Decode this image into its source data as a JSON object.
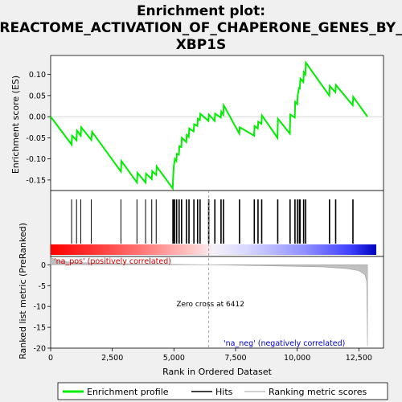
{
  "chart_data": {
    "type": "line",
    "title_lines": [
      "Enrichment plot:",
      "REACTOME_ACTIVATION_OF_CHAPERONE_GENES_BY_",
      "XBP1S"
    ],
    "top": {
      "ylabel": "Enrichment score (ES)",
      "yticks": [
        0.1,
        0.05,
        0.0,
        -0.05,
        -0.1,
        -0.15
      ],
      "ytick_labels": [
        "0.10",
        "0.05",
        "0.00",
        "-0.05",
        "-0.10",
        "-0.15"
      ],
      "ylim": [
        -0.175,
        0.145
      ],
      "es_curve": [
        [
          0,
          0
        ],
        [
          850,
          -0.066
        ],
        [
          870,
          -0.045
        ],
        [
          1050,
          -0.056
        ],
        [
          1070,
          -0.033
        ],
        [
          1220,
          -0.045
        ],
        [
          1240,
          -0.025
        ],
        [
          1650,
          -0.055
        ],
        [
          1680,
          -0.036
        ],
        [
          2850,
          -0.13
        ],
        [
          2870,
          -0.105
        ],
        [
          3500,
          -0.156
        ],
        [
          3520,
          -0.133
        ],
        [
          3850,
          -0.156
        ],
        [
          3870,
          -0.135
        ],
        [
          4100,
          -0.148
        ],
        [
          4120,
          -0.129
        ],
        [
          4280,
          -0.138
        ],
        [
          4300,
          -0.118
        ],
        [
          4950,
          -0.17
        ],
        [
          4965,
          -0.148
        ],
        [
          4980,
          -0.13
        ],
        [
          5000,
          -0.115
        ],
        [
          5040,
          -0.1
        ],
        [
          5100,
          -0.105
        ],
        [
          5120,
          -0.088
        ],
        [
          5200,
          -0.09
        ],
        [
          5220,
          -0.07
        ],
        [
          5300,
          -0.072
        ],
        [
          5320,
          -0.05
        ],
        [
          5500,
          -0.06
        ],
        [
          5520,
          -0.043
        ],
        [
          5600,
          -0.048
        ],
        [
          5620,
          -0.028
        ],
        [
          5800,
          -0.035
        ],
        [
          5820,
          -0.018
        ],
        [
          5950,
          -0.022
        ],
        [
          5970,
          -0.005
        ],
        [
          6050,
          -0.008
        ],
        [
          6070,
          0.007
        ],
        [
          6400,
          -0.01
        ],
        [
          6420,
          0.005
        ],
        [
          6650,
          -0.01
        ],
        [
          6670,
          0.007
        ],
        [
          6900,
          -0.002
        ],
        [
          6920,
          0.012
        ],
        [
          7000,
          0.005
        ],
        [
          7020,
          0.027
        ],
        [
          7650,
          -0.04
        ],
        [
          7670,
          -0.025
        ],
        [
          8250,
          -0.045
        ],
        [
          8270,
          -0.022
        ],
        [
          8400,
          -0.028
        ],
        [
          8420,
          -0.012
        ],
        [
          8550,
          -0.017
        ],
        [
          8570,
          0.003
        ],
        [
          9200,
          -0.05
        ],
        [
          9220,
          -0.005
        ],
        [
          9700,
          -0.04
        ],
        [
          9720,
          0.005
        ],
        [
          9900,
          -0.002
        ],
        [
          9920,
          0.035
        ],
        [
          10000,
          0.03
        ],
        [
          10020,
          0.05
        ],
        [
          10080,
          0.07
        ],
        [
          10100,
          0.065
        ],
        [
          10130,
          0.09
        ],
        [
          10250,
          0.082
        ],
        [
          10270,
          0.105
        ],
        [
          10330,
          0.1
        ],
        [
          10350,
          0.128
        ],
        [
          11300,
          0.05
        ],
        [
          11320,
          0.073
        ],
        [
          11550,
          0.058
        ],
        [
          11570,
          0.075
        ],
        [
          12250,
          0.027
        ],
        [
          12270,
          0.047
        ],
        [
          12850,
          0
        ]
      ]
    },
    "hits": [
      850,
      1050,
      1220,
      1650,
      2850,
      3500,
      3850,
      4100,
      4280,
      4950,
      4965,
      4980,
      5000,
      5040,
      5100,
      5120,
      5200,
      5220,
      5300,
      5320,
      5500,
      5520,
      5600,
      5620,
      5800,
      5820,
      5950,
      5970,
      6050,
      6070,
      6400,
      6420,
      6650,
      6670,
      6900,
      6920,
      7000,
      7020,
      7650,
      7670,
      8250,
      8270,
      8400,
      8420,
      8550,
      8570,
      9200,
      9220,
      9700,
      9720,
      9900,
      9920,
      10000,
      10020,
      10080,
      10100,
      10130,
      10250,
      10270,
      10330,
      10350,
      11300,
      11320,
      11550,
      11570,
      12250,
      12270
    ],
    "bottom": {
      "ylabel": "Ranked list metric (PreRanked)",
      "xlabel": "Rank in Ordered Dataset",
      "yticks": [
        0,
        -5,
        -10,
        -15,
        -20
      ],
      "ytick_labels": [
        "0",
        "-5",
        "-10",
        "-15",
        "-20"
      ],
      "ylim": [
        -20,
        2
      ],
      "xticks": [
        0,
        2500,
        5000,
        7500,
        10000,
        12500
      ],
      "xtick_labels": [
        "0",
        "2,500",
        "5,000",
        "7,500",
        "10,000",
        "12,500"
      ],
      "xlim": [
        0,
        13500
      ],
      "metric_curve": [
        [
          0,
          1.8
        ],
        [
          200,
          1.1
        ],
        [
          800,
          0.6
        ],
        [
          2000,
          0.35
        ],
        [
          4000,
          0.18
        ],
        [
          6412,
          0
        ],
        [
          9000,
          -0.25
        ],
        [
          11000,
          -0.5
        ],
        [
          12000,
          -0.9
        ],
        [
          12500,
          -1.4
        ],
        [
          12750,
          -2.4
        ],
        [
          12820,
          -4
        ],
        [
          12850,
          -19.5
        ]
      ],
      "zero_cross_label": "Zero cross at 6412",
      "zero_cross_rank": 6412,
      "pos_label": "'na_pos' (positively correlated)",
      "neg_label": "'na_neg' (negatively correlated)"
    },
    "n_genes": 12850,
    "legend": [
      {
        "label": "Enrichment profile",
        "color": "#00ee00"
      },
      {
        "label": "Hits",
        "color": "#000000"
      },
      {
        "label": "Ranking metric scores",
        "color": "#c0c0c0"
      }
    ],
    "colors": {
      "es": "#00ee00",
      "pos_text": "#cc0000",
      "neg_text": "#0000cc"
    }
  }
}
